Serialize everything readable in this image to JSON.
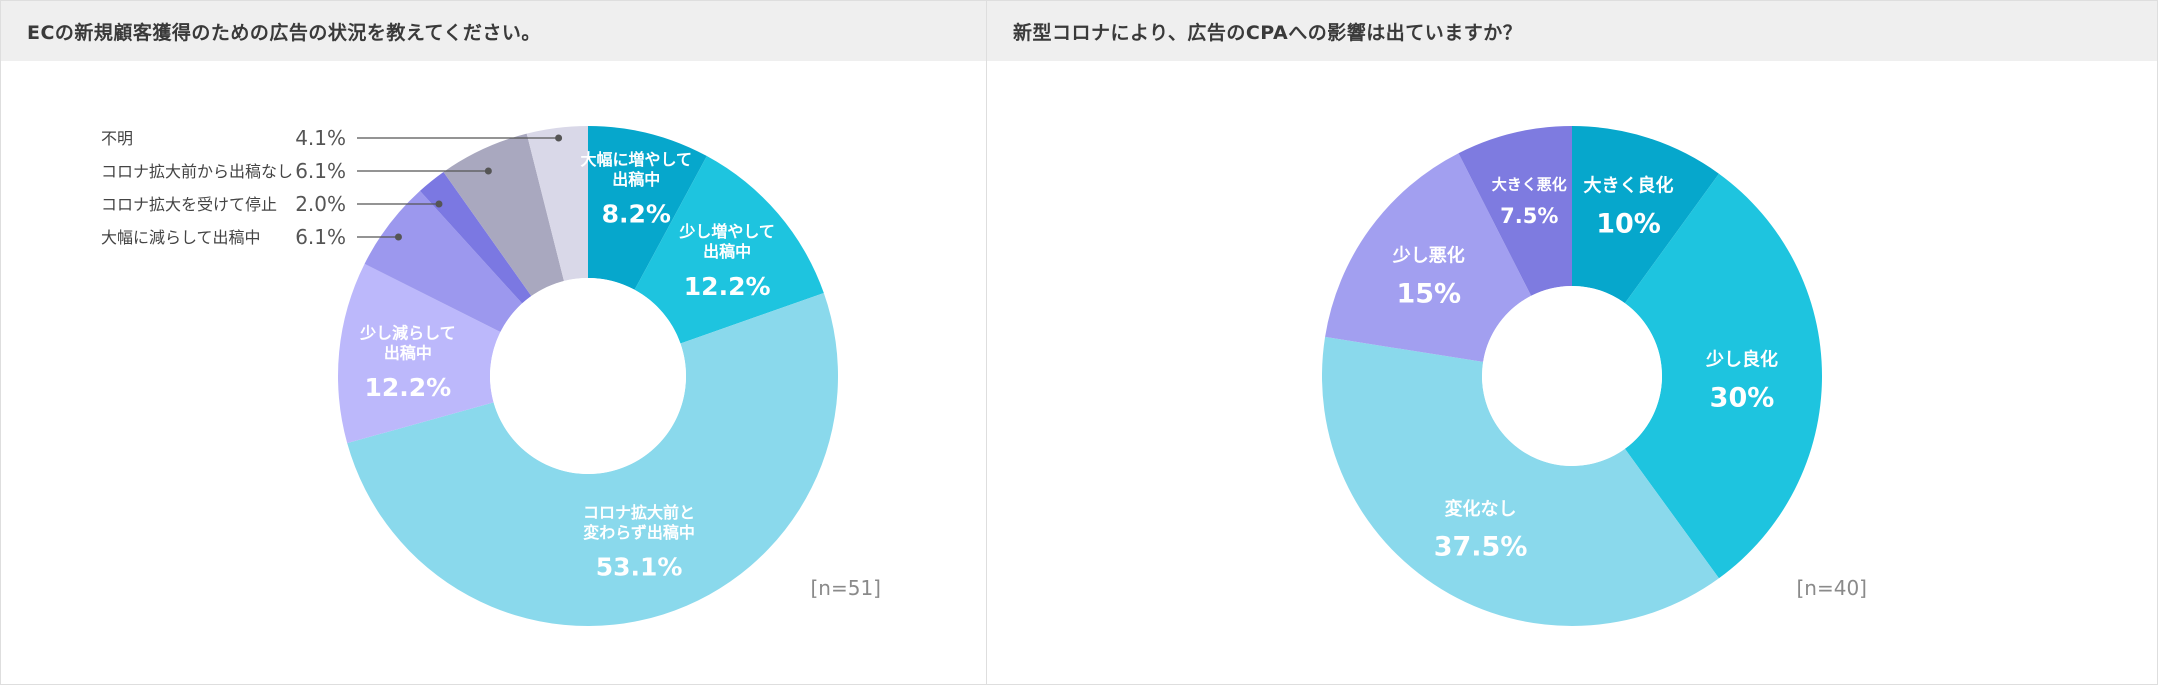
{
  "colors": {
    "background": "#ffffff",
    "header_bg": "#efefef",
    "label_text": "#ffffff",
    "leader_line": "#555555"
  },
  "chart_data": [
    {
      "type": "pie",
      "title": "ECの新規顧客獲得のための広告の状況を教えてください。",
      "n_label": "[n=51]",
      "donut": true,
      "slices": [
        {
          "label": "大幅に増やして出稿中",
          "lines": [
            "大幅に増やして",
            "出稿中"
          ],
          "value": 8.2,
          "display": "8.2%",
          "color": "#06a7cc"
        },
        {
          "label": "少し増やして出稿中",
          "lines": [
            "少し増やして",
            "出稿中"
          ],
          "value": 12.2,
          "display": "12.2%",
          "color": "#1ec4df"
        },
        {
          "label": "コロナ拡大前と変わらず出稿中",
          "lines": [
            "コロナ拡大前と",
            "変わらず出稿中"
          ],
          "value": 53.1,
          "display": "53.1%",
          "color": "#8ad9ec"
        },
        {
          "label": "少し減らして出稿中",
          "lines": [
            "少し減らして",
            "出稿中"
          ],
          "value": 12.2,
          "display": "12.2%",
          "color": "#bcb8fb"
        },
        {
          "label": "大幅に減らして出稿中",
          "value": 6.1,
          "display": "6.1%",
          "color": "#9c98ee"
        },
        {
          "label": "コロナ拡大を受けて停止",
          "value": 2.0,
          "display": "2.0%",
          "color": "#7b78e2"
        },
        {
          "label": "コロナ拡大前から出稿なし",
          "value": 6.1,
          "display": "6.1%",
          "color": "#a9a8bf"
        },
        {
          "label": "不明",
          "value": 4.1,
          "display": "4.1%",
          "color": "#d9d8e8"
        }
      ]
    },
    {
      "type": "pie",
      "title": "新型コロナにより、広告のCPAへの影響は出ていますか？",
      "n_label": "[n=40]",
      "donut": true,
      "slices": [
        {
          "label": "大きく良化",
          "lines": [
            "大きく良化"
          ],
          "value": 10,
          "display": "10%",
          "color": "#06a7cc"
        },
        {
          "label": "少し良化",
          "lines": [
            "少し良化"
          ],
          "value": 30,
          "display": "30%",
          "color": "#1ec4df"
        },
        {
          "label": "変化なし",
          "lines": [
            "変化なし"
          ],
          "value": 37.5,
          "display": "37.5%",
          "color": "#8ad9ec"
        },
        {
          "label": "少し悪化",
          "lines": [
            "少し悪化"
          ],
          "value": 15,
          "display": "15%",
          "color": "#a29ff0"
        },
        {
          "label": "大きく悪化",
          "lines": [
            "大きく悪化"
          ],
          "value": 7.5,
          "display": "7.5%",
          "color": "#7e7be0"
        }
      ]
    }
  ]
}
